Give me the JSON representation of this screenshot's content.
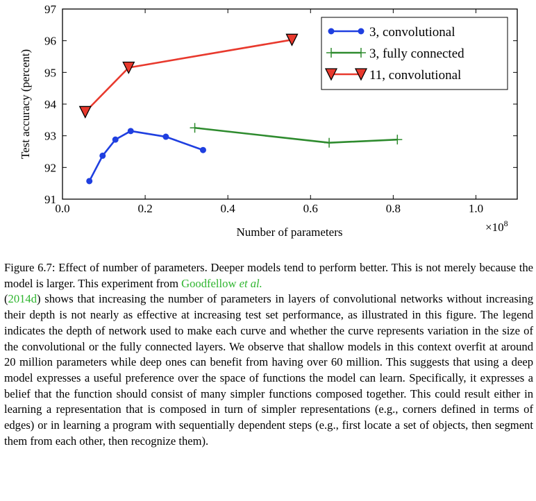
{
  "chart_data": {
    "type": "line",
    "xlabel": "Number of parameters",
    "ylabel": "Test accuracy (percent)",
    "x_multiplier_label": "×10",
    "x_multiplier_exp": "8",
    "xlim": [
      0.0,
      1.1
    ],
    "ylim": [
      91,
      97
    ],
    "xticks": [
      "0.0",
      "0.2",
      "0.4",
      "0.6",
      "0.8",
      "1.0"
    ],
    "yticks": [
      "91",
      "92",
      "93",
      "94",
      "95",
      "96",
      "97"
    ],
    "legend_position": "top-right",
    "series": [
      {
        "name": "3, convolutional",
        "color": "#1f3fe0",
        "marker": "circle",
        "x": [
          0.065,
          0.097,
          0.128,
          0.165,
          0.25,
          0.34
        ],
        "y": [
          91.57,
          92.37,
          92.88,
          93.15,
          92.97,
          92.55
        ]
      },
      {
        "name": "3, fully connected",
        "color": "#2e8b2e",
        "marker": "plus",
        "x": [
          0.32,
          0.645,
          0.81
        ],
        "y": [
          93.25,
          92.78,
          92.88
        ]
      },
      {
        "name": "11, convolutional",
        "color": "#e8392d",
        "marker": "triangle-down",
        "x": [
          0.055,
          0.16,
          0.555
        ],
        "y": [
          93.75,
          95.15,
          96.03
        ]
      }
    ]
  },
  "caption": {
    "prefix": "Figure 6.7: Effect of number of parameters. Deeper models tend to perform better. This is not merely because the model is larger. This experiment from ",
    "cite_name": "Goodfellow ",
    "cite_etal": "et al.",
    "cite_open": "(",
    "cite_year": "2014d",
    "cite_close": ")",
    "body": " shows that increasing the number of parameters in layers of convolutional networks without increasing their depth is not nearly as effective at increasing test set performance, as illustrated in this figure. The legend indicates the depth of network used to make each curve and whether the curve represents variation in the size of the convolutional or the fully connected layers. We observe that shallow models in this context overfit at around 20 million parameters while deep ones can benefit from having over 60 million. This suggests that using a deep model expresses a useful preference over the space of functions the model can learn. Specifically, it expresses a belief that the function should consist of many simpler functions composed together. This could result either in learning a representation that is composed in turn of simpler representations (e.g., corners defined in terms of edges) or in learning a program with sequentially dependent steps (e.g., first locate a set of objects, then segment them from each other, then recognize them)."
  }
}
